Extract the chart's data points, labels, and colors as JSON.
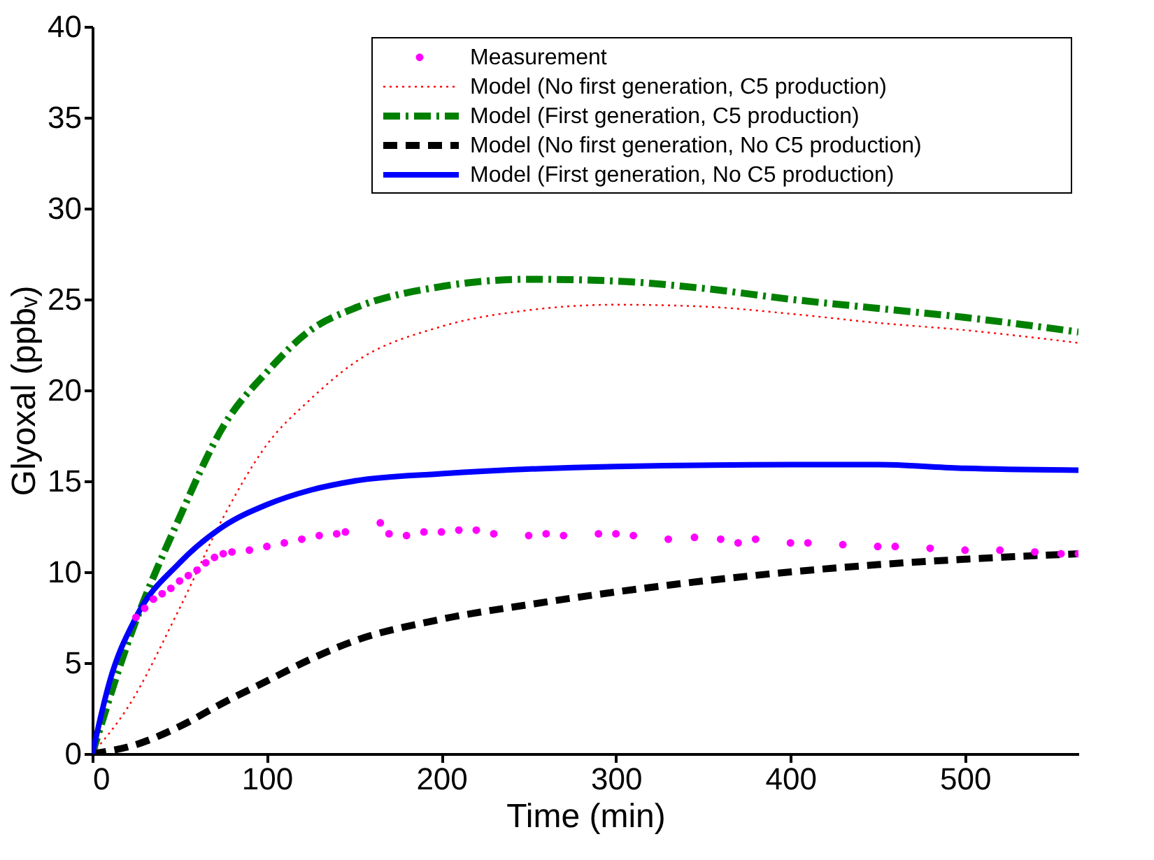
{
  "chart_data": {
    "type": "line",
    "xlabel": "Time (min)",
    "ylabel": "Glyoxal (ppbᵥ)",
    "xlim": [
      0,
      565
    ],
    "xticks": [
      0,
      100,
      200,
      300,
      400,
      500
    ],
    "ylim": [
      0,
      40
    ],
    "yticks": [
      0,
      5,
      10,
      15,
      20,
      25,
      30,
      35,
      40
    ],
    "grid": false,
    "legend": "top right",
    "series": [
      {
        "name": "Measurement",
        "type": "scatter",
        "marker": "circle",
        "color": "#ff00ff",
        "x": [
          25,
          30,
          35,
          40,
          45,
          50,
          55,
          60,
          65,
          70,
          75,
          80,
          90,
          100,
          110,
          120,
          130,
          140,
          145,
          165,
          170,
          180,
          190,
          200,
          210,
          220,
          230,
          250,
          260,
          270,
          290,
          300,
          310,
          330,
          345,
          360,
          370,
          380,
          400,
          410,
          430,
          450,
          460,
          480,
          500,
          520,
          540,
          555,
          565
        ],
        "values": [
          7.5,
          8.0,
          8.5,
          8.8,
          9.1,
          9.5,
          9.8,
          10.1,
          10.5,
          10.8,
          11.0,
          11.1,
          11.2,
          11.4,
          11.6,
          11.8,
          12.0,
          12.1,
          12.2,
          12.7,
          12.1,
          12.0,
          12.2,
          12.2,
          12.3,
          12.3,
          12.1,
          12.0,
          12.1,
          12.0,
          12.1,
          12.1,
          12.0,
          11.8,
          11.9,
          11.8,
          11.6,
          11.8,
          11.6,
          11.6,
          11.5,
          11.4,
          11.4,
          11.3,
          11.2,
          11.2,
          11.1,
          11.0,
          11.0
        ]
      },
      {
        "name": "Model (No first generation, C5 production)",
        "line_style": "dotted",
        "color": "#ff0000",
        "x": [
          0,
          20,
          50,
          75,
          100,
          125,
          150,
          200,
          250,
          300,
          350,
          400,
          450,
          500,
          565
        ],
        "values": [
          0,
          2.5,
          8,
          13,
          17,
          19.5,
          21.5,
          23.5,
          24.4,
          24.7,
          24.6,
          24.2,
          23.7,
          23.3,
          22.6
        ]
      },
      {
        "name": "Model (First generation, C5 production)",
        "line_style": "dashdot",
        "color": "#008000",
        "x": [
          0,
          20,
          50,
          75,
          100,
          125,
          150,
          200,
          250,
          300,
          350,
          400,
          450,
          500,
          565
        ],
        "values": [
          0,
          6,
          13,
          18,
          21,
          23.3,
          24.5,
          25.7,
          26.1,
          26,
          25.6,
          25,
          24.5,
          24,
          23.2
        ]
      },
      {
        "name": "Model (No first generation, No C5 production)",
        "line_style": "dashed",
        "color": "#000000",
        "x": [
          0,
          25,
          50,
          75,
          100,
          125,
          150,
          200,
          250,
          300,
          350,
          400,
          450,
          500,
          565
        ],
        "values": [
          0,
          0.5,
          1.5,
          2.8,
          4,
          5.2,
          6.2,
          7.4,
          8.2,
          8.9,
          9.5,
          10,
          10.4,
          10.7,
          11
        ]
      },
      {
        "name": "Model (First generation, No C5 production)",
        "line_style": "solid",
        "color": "#0000ff",
        "x": [
          0,
          10,
          25,
          50,
          75,
          100,
          125,
          150,
          200,
          300,
          400,
          450,
          500,
          565
        ],
        "values": [
          0,
          4,
          7.5,
          10.5,
          12.5,
          13.7,
          14.5,
          15,
          15.4,
          15.8,
          15.9,
          15.9,
          15.7,
          15.6
        ]
      }
    ]
  }
}
